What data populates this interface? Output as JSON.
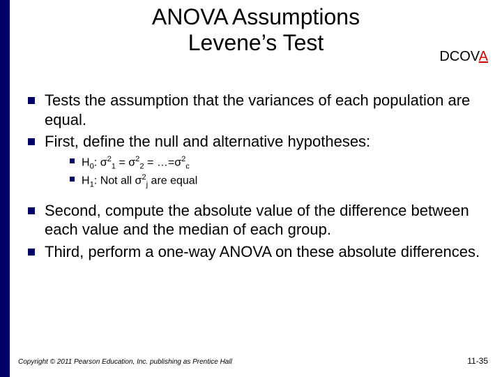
{
  "colors": {
    "sidebar": "#000066",
    "bullet": "#000066",
    "accent_red": "#cc0000",
    "background": "#ffffff",
    "text": "#000000"
  },
  "title": {
    "line1": "ANOVA Assumptions",
    "line2": "Levene’s Test",
    "fontsize": 32
  },
  "dcova": {
    "prefix": "DCOV",
    "highlight": "A",
    "fontsize": 20
  },
  "bullets": {
    "b1": "Tests the assumption that the variances of each population are equal.",
    "b2": "First, define the null and alternative hypotheses:",
    "b3": "Second, compute the absolute value of the difference between each value and the median of each group.",
    "b4": "Third, perform a one-way ANOVA on these absolute differences.",
    "level1_fontsize": 22,
    "level2_fontsize": 16
  },
  "sub_bullets": {
    "h0_label": "H",
    "h0_sub": "0",
    "h0_colon": ": σ",
    "eq": " = ",
    "sigma": "σ",
    "sup2": "2",
    "sub1": "1",
    "sub2": "2",
    "ellipsis": " = …=",
    "subc": "c",
    "h1_label": "H",
    "h1_sub": "1",
    "h1_text": ": Not all  σ",
    "subj": "j",
    "h1_tail": " are equal"
  },
  "footer": {
    "left": "Copyright © 2011 Pearson Education, Inc. publishing as Prentice Hall",
    "right": "11-35"
  }
}
